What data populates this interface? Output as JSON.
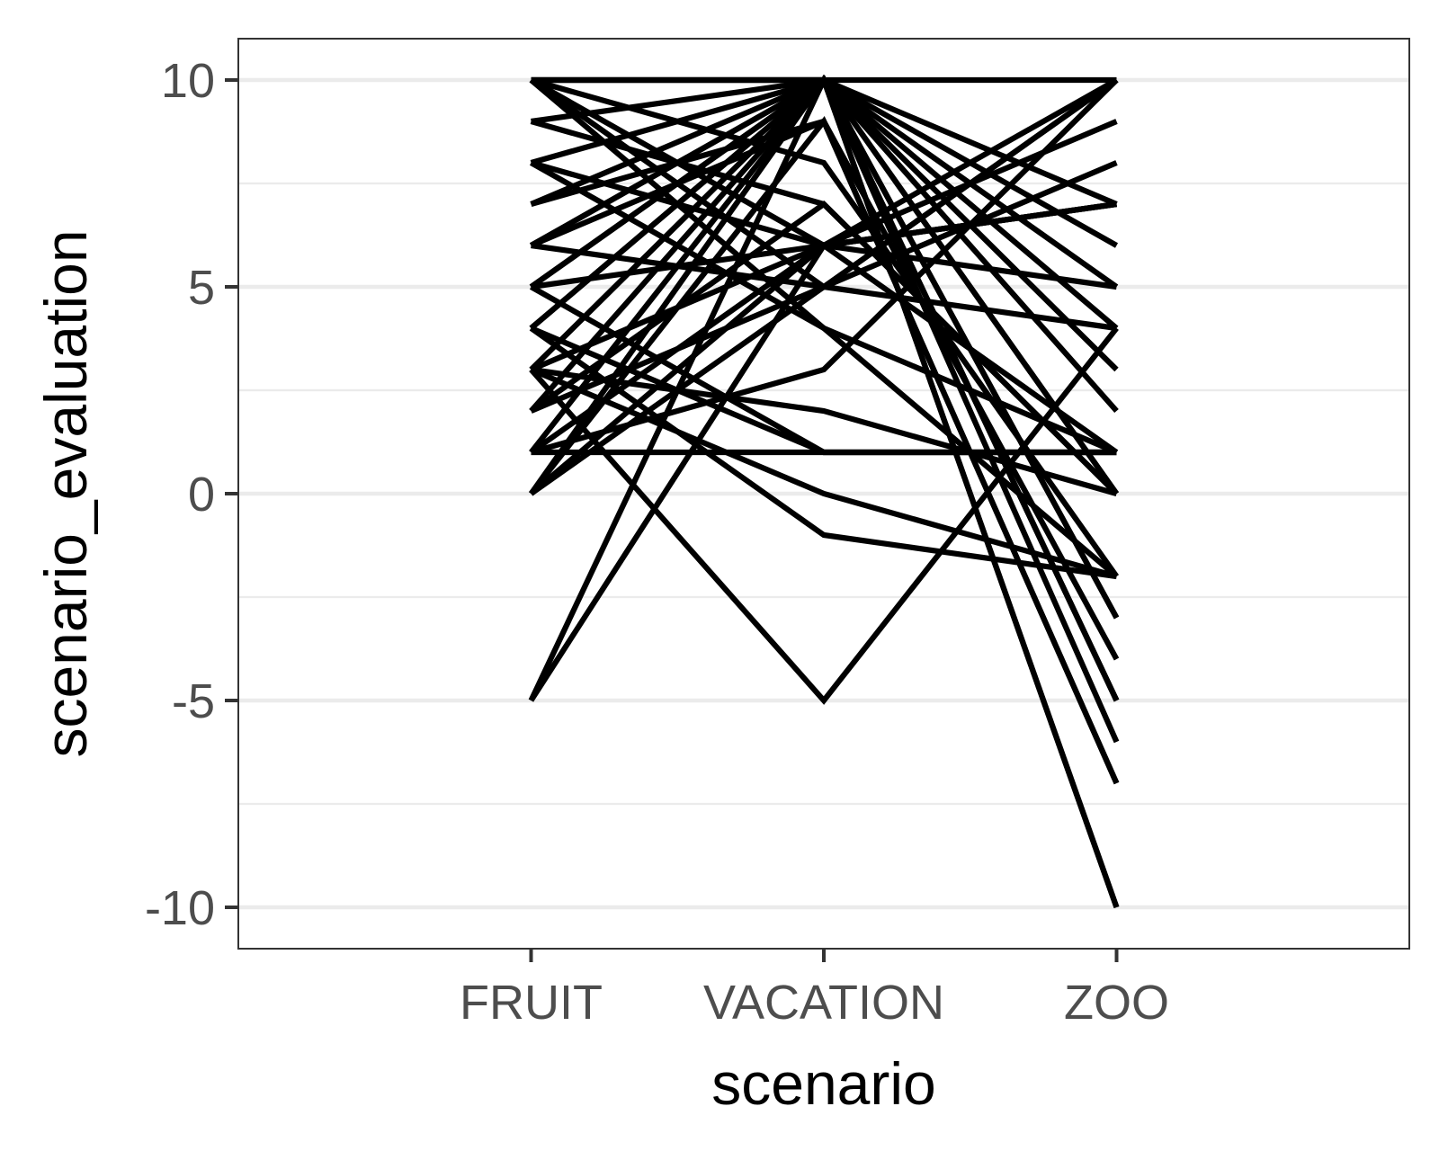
{
  "chart_data": {
    "type": "line",
    "title": "",
    "xlabel": "scenario",
    "ylabel": "scenario_evaluation",
    "categories": [
      "FRUIT",
      "VACATION",
      "ZOO"
    ],
    "ylim": [
      -11,
      11
    ],
    "yticks": [
      -10,
      -5,
      0,
      5,
      10
    ],
    "grid_major_y": true,
    "grid_minor_y": true,
    "grid_x": false,
    "legend": "none",
    "line_color": "#000000",
    "series": [
      {
        "values": [
          10,
          10,
          10
        ]
      },
      {
        "values": [
          10,
          10,
          -10
        ]
      },
      {
        "values": [
          10,
          10,
          -5
        ]
      },
      {
        "values": [
          10,
          6,
          7
        ]
      },
      {
        "values": [
          10,
          5,
          4
        ]
      },
      {
        "values": [
          10,
          8,
          -2
        ]
      },
      {
        "values": [
          9,
          10,
          7
        ]
      },
      {
        "values": [
          9,
          7,
          0
        ]
      },
      {
        "values": [
          8,
          10,
          -3
        ]
      },
      {
        "values": [
          8,
          6,
          5
        ]
      },
      {
        "values": [
          8,
          4,
          1
        ]
      },
      {
        "values": [
          7,
          10,
          5
        ]
      },
      {
        "values": [
          7,
          9,
          -7
        ]
      },
      {
        "values": [
          6,
          10,
          2
        ]
      },
      {
        "values": [
          6,
          9,
          -4
        ]
      },
      {
        "values": [
          6,
          5,
          8
        ]
      },
      {
        "values": [
          6,
          10,
          0
        ]
      },
      {
        "values": [
          5,
          10,
          6
        ]
      },
      {
        "values": [
          5,
          10,
          -6
        ]
      },
      {
        "values": [
          5,
          6,
          7
        ]
      },
      {
        "values": [
          4,
          10,
          3
        ]
      },
      {
        "values": [
          4,
          10,
          -10
        ]
      },
      {
        "values": [
          4,
          1,
          1
        ]
      },
      {
        "values": [
          3,
          10,
          -5
        ]
      },
      {
        "values": [
          3,
          6,
          9
        ]
      },
      {
        "values": [
          3,
          0,
          -2
        ]
      },
      {
        "values": [
          2,
          10,
          4
        ]
      },
      {
        "values": [
          2,
          7,
          0
        ]
      },
      {
        "values": [
          2,
          5,
          10
        ]
      },
      {
        "values": [
          1,
          10,
          -3
        ]
      },
      {
        "values": [
          1,
          6,
          7
        ]
      },
      {
        "values": [
          1,
          1,
          1
        ]
      },
      {
        "values": [
          1,
          3,
          10
        ]
      },
      {
        "values": [
          0,
          10,
          -5
        ]
      },
      {
        "values": [
          0,
          9,
          -7
        ]
      },
      {
        "values": [
          0,
          5,
          10
        ]
      },
      {
        "values": [
          0,
          6,
          1
        ]
      },
      {
        "values": [
          3,
          -5,
          4
        ]
      },
      {
        "values": [
          4,
          -1,
          -2
        ]
      },
      {
        "values": [
          3,
          2,
          0
        ]
      },
      {
        "values": [
          -5,
          10,
          0
        ]
      },
      {
        "values": [
          -5,
          6,
          10
        ]
      },
      {
        "values": [
          10,
          4,
          -2
        ]
      },
      {
        "values": [
          5,
          1,
          1
        ]
      }
    ]
  }
}
